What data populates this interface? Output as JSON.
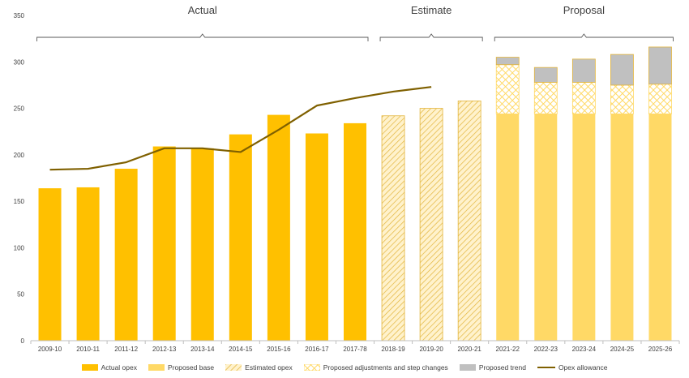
{
  "chart_data": {
    "type": "bar",
    "categories": [
      "2009-10",
      "2010-11",
      "2011-12",
      "2012-13",
      "2013-14",
      "2014-15",
      "2015-16",
      "2016-17",
      "2017-78",
      "2018-19",
      "2019-20",
      "2020-21",
      "2021-22",
      "2022-23",
      "2023-24",
      "2024-25",
      "2025-26"
    ],
    "series": [
      {
        "name": "Actual opex",
        "values": [
          164,
          165,
          185,
          209,
          207,
          222,
          243,
          223,
          234,
          null,
          null,
          null,
          null,
          null,
          null,
          null,
          null
        ]
      },
      {
        "name": "Proposed base",
        "values": [
          null,
          null,
          null,
          null,
          null,
          null,
          null,
          null,
          null,
          null,
          null,
          null,
          244,
          244,
          244,
          244,
          244
        ]
      },
      {
        "name": "Estimated opex",
        "values": [
          null,
          null,
          null,
          null,
          null,
          null,
          null,
          null,
          null,
          242,
          250,
          258,
          null,
          null,
          null,
          null,
          null
        ]
      },
      {
        "name": "Proposed adjustments and step changes",
        "values": [
          null,
          null,
          null,
          null,
          null,
          null,
          null,
          null,
          null,
          null,
          null,
          null,
          53,
          34,
          34,
          31,
          32
        ]
      },
      {
        "name": "Proposed trend",
        "values": [
          null,
          null,
          null,
          null,
          null,
          null,
          null,
          null,
          null,
          null,
          null,
          null,
          8,
          16,
          25,
          33,
          40
        ]
      },
      {
        "name": "Opex allowance",
        "type": "line",
        "values": [
          184,
          185,
          192,
          207,
          207,
          203,
          227,
          253,
          261,
          268,
          273,
          null,
          null,
          null,
          null,
          null,
          null
        ]
      }
    ],
    "sections": [
      {
        "label": "Actual",
        "from": 0,
        "to": 8
      },
      {
        "label": "Estimate",
        "from": 9,
        "to": 11
      },
      {
        "label": "Proposal",
        "from": 12,
        "to": 16
      }
    ],
    "y_ticks": [
      "0",
      "50",
      "100",
      "150",
      "200",
      "250",
      "300",
      "350"
    ],
    "ylim": [
      0,
      350
    ],
    "grid": false,
    "legend_position": "bottom",
    "colors": {
      "actual": "#FFC000",
      "base": "#FFD966",
      "estimated_fill": "#FFF2CC",
      "estimated_hatch": "#E2B43A",
      "adjust_bg": "#FFFFFF",
      "adjust_hatch": "#FFD966",
      "trend": "#C0C0C0",
      "line": "#7F6000",
      "bracket": "#595959",
      "axis": "#BFBFBF"
    }
  }
}
